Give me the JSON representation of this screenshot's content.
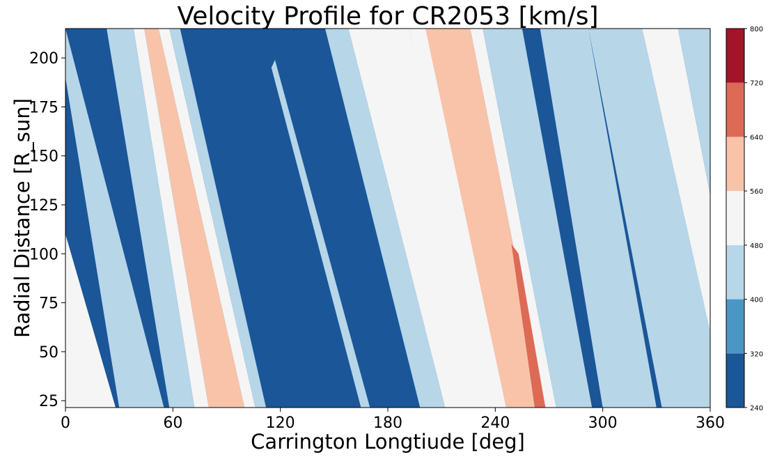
{
  "chart_data": {
    "type": "heatmap",
    "title": "Velocity Profile for CR2053 [km/s]",
    "xlabel": "Carrington Longtiude [deg]",
    "ylabel": "Radial Distance [R_sun]",
    "xlim": [
      0,
      360
    ],
    "ylim": [
      21.5,
      215
    ],
    "xticks": [
      0,
      60,
      120,
      180,
      240,
      300,
      360
    ],
    "yticks": [
      25,
      50,
      75,
      100,
      125,
      150,
      175,
      200
    ],
    "grid": false,
    "colorbar": {
      "ticks": [
        240,
        320,
        400,
        480,
        560,
        640,
        720,
        800
      ],
      "levels": [
        {
          "min": 240,
          "max": 320,
          "color": "#1a5698"
        },
        {
          "min": 320,
          "max": 400,
          "color": "#4a97c5"
        },
        {
          "min": 400,
          "max": 480,
          "color": "#b7d6e8"
        },
        {
          "min": 480,
          "max": 560,
          "color": "#f5f5f5"
        },
        {
          "min": 560,
          "max": 640,
          "color": "#f8c3a9"
        },
        {
          "min": 640,
          "max": 720,
          "color": "#dd6a55"
        },
        {
          "min": 720,
          "max": 800,
          "color": "#a1142a"
        }
      ]
    },
    "bands": [
      {
        "value": 400,
        "points": [
          [
            0,
            215
          ],
          [
            0,
            190
          ],
          [
            30,
            21.5
          ],
          [
            55,
            21.5
          ]
        ],
        "closed": false
      },
      {
        "value": 560,
        "points": [
          [
            44,
            215
          ],
          [
            52,
            215
          ],
          [
            100,
            21.5
          ],
          [
            80,
            21.5
          ]
        ]
      },
      {
        "value": 480,
        "points": [
          [
            38,
            215
          ],
          [
            44,
            215
          ],
          [
            80,
            21.5
          ],
          [
            72,
            21.5
          ]
        ]
      },
      {
        "value": 400,
        "points": [
          [
            23,
            215
          ],
          [
            38,
            215
          ],
          [
            72,
            21.5
          ],
          [
            58,
            21.5
          ]
        ]
      },
      {
        "value": 480,
        "points": [
          [
            52,
            215
          ],
          [
            58,
            215
          ],
          [
            106,
            21.5
          ],
          [
            100,
            21.5
          ]
        ]
      },
      {
        "value": 400,
        "points": [
          [
            58,
            215
          ],
          [
            64,
            215
          ],
          [
            112,
            21.5
          ],
          [
            106,
            21.5
          ]
        ]
      },
      {
        "value": 400,
        "points": [
          [
            145,
            215
          ],
          [
            158,
            215
          ],
          [
            212,
            21.5
          ],
          [
            198,
            21.5
          ]
        ]
      },
      {
        "value": 480,
        "points": [
          [
            158,
            215
          ],
          [
            192,
            215
          ],
          [
            240,
            21.5
          ],
          [
            212,
            21.5
          ]
        ]
      },
      {
        "value": 560,
        "points": [
          [
            201,
            215
          ],
          [
            226,
            215
          ],
          [
            268,
            21.5
          ],
          [
            238,
            21.5
          ]
        ]
      },
      {
        "value": 480,
        "points": [
          [
            192,
            215
          ],
          [
            201,
            215
          ],
          [
            246,
            21.5
          ],
          [
            238,
            21.5
          ]
        ]
      },
      {
        "value": 480,
        "points": [
          [
            226,
            215
          ],
          [
            233,
            215
          ],
          [
            274,
            21.5
          ],
          [
            268,
            21.5
          ]
        ]
      },
      {
        "value": 400,
        "points": [
          [
            233,
            215
          ],
          [
            255,
            215
          ],
          [
            294,
            21.5
          ],
          [
            274,
            21.5
          ]
        ]
      },
      {
        "value": 400,
        "points": [
          [
            265,
            215
          ],
          [
            292,
            215
          ],
          [
            330,
            21.5
          ],
          [
            300,
            21.5
          ]
        ]
      },
      {
        "value": 400,
        "points": [
          [
            292,
            215
          ],
          [
            322,
            215
          ],
          [
            360,
            60
          ],
          [
            360,
            21.5
          ],
          [
            333,
            21.5
          ]
        ]
      },
      {
        "value": 480,
        "points": [
          [
            322,
            215
          ],
          [
            342,
            215
          ],
          [
            360,
            130
          ],
          [
            360,
            60
          ]
        ]
      },
      {
        "value": 400,
        "points": [
          [
            342,
            215
          ],
          [
            360,
            215
          ],
          [
            360,
            130
          ]
        ]
      },
      {
        "value": 480,
        "points": [
          [
            0,
            110
          ],
          [
            0,
            21.5
          ],
          [
            28,
            21.5
          ]
        ]
      },
      {
        "value": 640,
        "points": [
          [
            249,
            105
          ],
          [
            253,
            100
          ],
          [
            268,
            21.5
          ],
          [
            262,
            21.5
          ]
        ]
      },
      {
        "value": 400,
        "points": [
          [
            115,
            195
          ],
          [
            117,
            199
          ],
          [
            170,
            21.5
          ],
          [
            165,
            21.5
          ]
        ]
      }
    ]
  }
}
